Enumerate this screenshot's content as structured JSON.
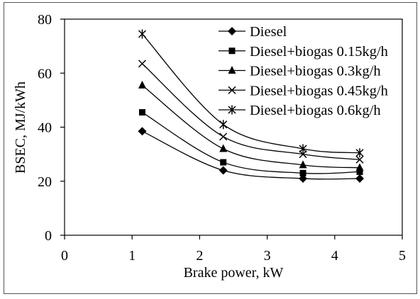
{
  "chart_data": {
    "type": "line",
    "xlabel": "Brake power, kW",
    "ylabel": "BSEC, MJ/kWh",
    "xlim": [
      0,
      5
    ],
    "ylim": [
      0,
      80
    ],
    "xticks": [
      0,
      1,
      2,
      3,
      4,
      5
    ],
    "yticks": [
      0,
      20,
      40,
      60,
      80
    ],
    "grid": false,
    "legend": "top-right",
    "smooth": true,
    "line_color": "#000000",
    "x": [
      1.15,
      2.35,
      3.53,
      4.37
    ],
    "series": [
      {
        "name": "Diesel",
        "marker": "diamond",
        "values": [
          38.5,
          24,
          21,
          21
        ]
      },
      {
        "name": "Diesel+biogas 0.15kg/h",
        "marker": "square",
        "values": [
          45.5,
          27,
          23,
          23.5
        ]
      },
      {
        "name": "Diesel+biogas 0.3kg/h",
        "marker": "triangle",
        "values": [
          55.5,
          32,
          26,
          25
        ]
      },
      {
        "name": "Diesel+biogas 0.45kg/h",
        "marker": "x",
        "values": [
          63.5,
          36.5,
          30,
          28
        ]
      },
      {
        "name": "Diesel+biogas 0.6kg/h",
        "marker": "star",
        "values": [
          74.5,
          41,
          32,
          30.5
        ]
      }
    ]
  }
}
